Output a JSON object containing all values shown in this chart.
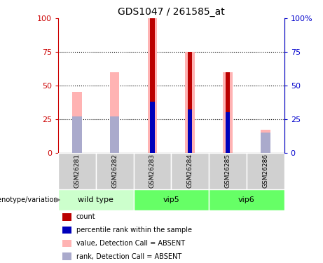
{
  "title": "GDS1047 / 261585_at",
  "samples": [
    "GSM26281",
    "GSM26282",
    "GSM26283",
    "GSM26284",
    "GSM26285",
    "GSM26286"
  ],
  "group_info": [
    {
      "name": "wild type",
      "start": 0,
      "end": 1,
      "color": "#ccffcc"
    },
    {
      "name": "vip5",
      "start": 2,
      "end": 3,
      "color": "#66ff66"
    },
    {
      "name": "vip6",
      "start": 4,
      "end": 5,
      "color": "#66ff66"
    }
  ],
  "pink_bar_heights": [
    45,
    60,
    100,
    75,
    60,
    17
  ],
  "red_bar_heights": [
    0,
    0,
    100,
    75,
    60,
    0
  ],
  "blue_bar_heights": [
    27,
    27,
    38,
    32,
    30,
    15
  ],
  "lightblue_bar_heights": [
    27,
    27,
    0,
    0,
    0,
    15
  ],
  "pink_color": "#ffb3b3",
  "red_color": "#bb0000",
  "blue_color": "#0000bb",
  "lblue_color": "#aaaacc",
  "ylim": [
    0,
    100
  ],
  "yticks": [
    0,
    25,
    50,
    75,
    100
  ],
  "ytick_labels_left": [
    "0",
    "25",
    "50",
    "75",
    "100"
  ],
  "ytick_labels_right": [
    "0",
    "25",
    "50",
    "75",
    "100%"
  ],
  "left_axis_color": "#cc0000",
  "right_axis_color": "#0000cc",
  "sample_label_color": "#d0d0d0",
  "legend_items": [
    {
      "color": "#bb0000",
      "label": "count"
    },
    {
      "color": "#0000bb",
      "label": "percentile rank within the sample"
    },
    {
      "color": "#ffb3b3",
      "label": "value, Detection Call = ABSENT"
    },
    {
      "color": "#aaaacc",
      "label": "rank, Detection Call = ABSENT"
    }
  ]
}
